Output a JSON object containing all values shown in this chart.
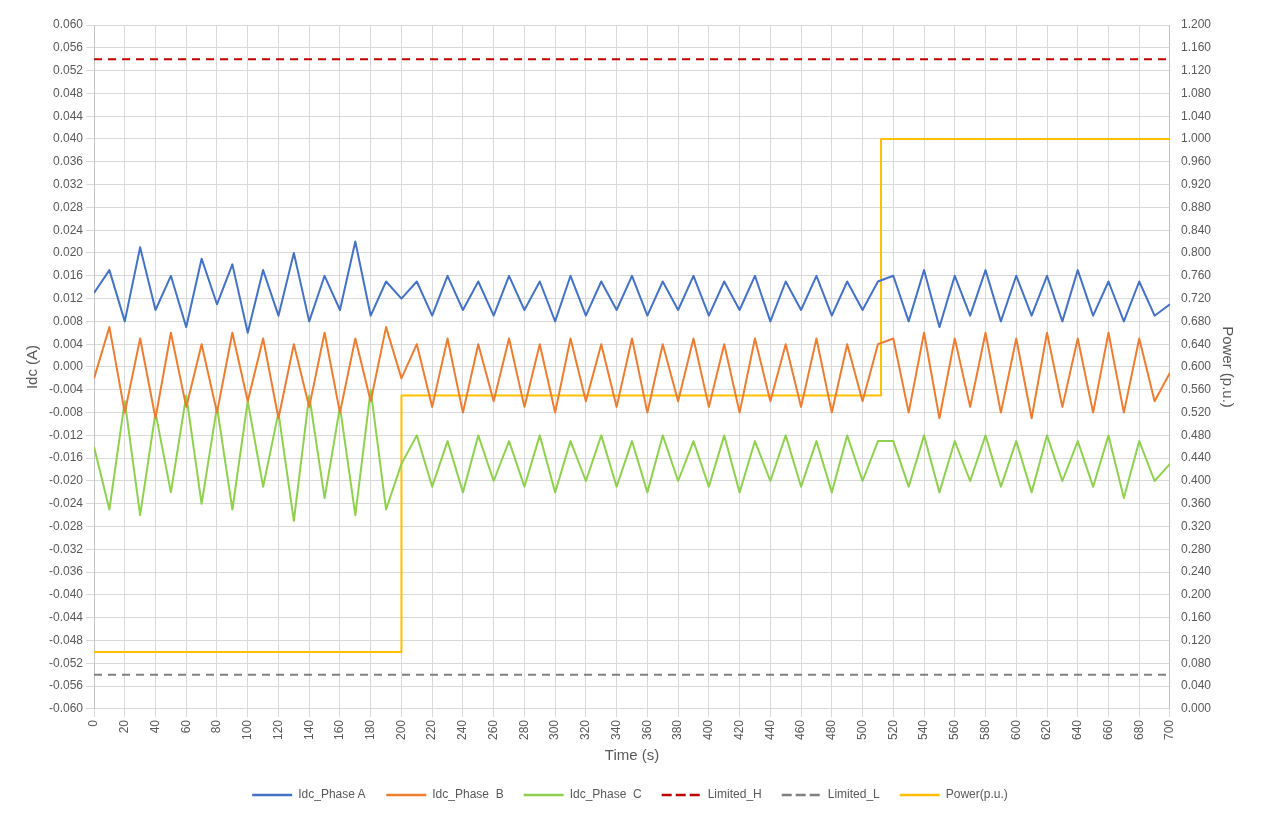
{
  "chart_data": {
    "type": "line",
    "xlabel": "Time (s)",
    "ylabel": "Idc (A)",
    "y2label": "Power (p.u.)",
    "x": [
      0,
      10,
      20,
      30,
      40,
      50,
      60,
      70,
      80,
      90,
      100,
      110,
      120,
      130,
      140,
      150,
      160,
      170,
      180,
      190,
      200,
      210,
      220,
      230,
      240,
      250,
      260,
      270,
      280,
      290,
      300,
      310,
      320,
      330,
      340,
      350,
      360,
      370,
      380,
      390,
      400,
      410,
      420,
      430,
      440,
      450,
      460,
      470,
      480,
      490,
      500,
      510,
      520,
      530,
      540,
      550,
      560,
      570,
      580,
      590,
      600,
      610,
      620,
      630,
      640,
      650,
      660,
      670,
      680,
      690,
      700
    ],
    "series": [
      {
        "name": "Idc_Phase A",
        "color": "#4472c4",
        "values": [
          0.013,
          0.017,
          0.008,
          0.021,
          0.01,
          0.016,
          0.007,
          0.019,
          0.011,
          0.018,
          0.006,
          0.017,
          0.009,
          0.02,
          0.008,
          0.016,
          0.01,
          0.022,
          0.009,
          0.015,
          0.012,
          0.015,
          0.009,
          0.016,
          0.01,
          0.015,
          0.009,
          0.016,
          0.01,
          0.015,
          0.008,
          0.016,
          0.009,
          0.015,
          0.01,
          0.016,
          0.009,
          0.015,
          0.01,
          0.016,
          0.009,
          0.015,
          0.01,
          0.016,
          0.008,
          0.015,
          0.01,
          0.016,
          0.009,
          0.015,
          0.01,
          0.015,
          0.016,
          0.008,
          0.017,
          0.007,
          0.016,
          0.009,
          0.017,
          0.008,
          0.016,
          0.009,
          0.016,
          0.008,
          0.017,
          0.009,
          0.015,
          0.008,
          0.015,
          0.009,
          0.011
        ]
      },
      {
        "name": "Idc_Phase  B",
        "color": "#ed7d31",
        "values": [
          -0.002,
          0.007,
          -0.008,
          0.005,
          -0.009,
          0.006,
          -0.007,
          0.004,
          -0.008,
          0.006,
          -0.006,
          0.005,
          -0.009,
          0.004,
          -0.007,
          0.006,
          -0.008,
          0.005,
          -0.006,
          0.007,
          -0.002,
          0.004,
          -0.007,
          0.005,
          -0.008,
          0.004,
          -0.006,
          0.005,
          -0.007,
          0.004,
          -0.008,
          0.005,
          -0.006,
          0.004,
          -0.007,
          0.005,
          -0.008,
          0.004,
          -0.006,
          0.005,
          -0.007,
          0.004,
          -0.008,
          0.005,
          -0.006,
          0.004,
          -0.007,
          0.005,
          -0.008,
          0.004,
          -0.006,
          0.004,
          0.005,
          -0.008,
          0.006,
          -0.009,
          0.005,
          -0.007,
          0.006,
          -0.008,
          0.005,
          -0.009,
          0.006,
          -0.007,
          0.005,
          -0.008,
          0.006,
          -0.008,
          0.005,
          -0.006,
          -0.001
        ]
      },
      {
        "name": "Idc_Phase  C",
        "color": "#8fd14f",
        "values": [
          -0.014,
          -0.025,
          -0.006,
          -0.026,
          -0.008,
          -0.022,
          -0.005,
          -0.024,
          -0.007,
          -0.025,
          -0.006,
          -0.021,
          -0.008,
          -0.027,
          -0.005,
          -0.023,
          -0.007,
          -0.026,
          -0.004,
          -0.025,
          -0.017,
          -0.012,
          -0.021,
          -0.013,
          -0.022,
          -0.012,
          -0.02,
          -0.013,
          -0.021,
          -0.012,
          -0.022,
          -0.013,
          -0.02,
          -0.012,
          -0.021,
          -0.013,
          -0.022,
          -0.012,
          -0.02,
          -0.013,
          -0.021,
          -0.012,
          -0.022,
          -0.013,
          -0.02,
          -0.012,
          -0.021,
          -0.013,
          -0.022,
          -0.012,
          -0.02,
          -0.013,
          -0.013,
          -0.021,
          -0.012,
          -0.022,
          -0.013,
          -0.02,
          -0.012,
          -0.021,
          -0.013,
          -0.022,
          -0.012,
          -0.02,
          -0.013,
          -0.021,
          -0.012,
          -0.023,
          -0.013,
          -0.02,
          -0.017
        ]
      },
      {
        "name": "Limited_H",
        "color": "#c00000",
        "line_style": "dashed",
        "x": [
          0,
          700
        ],
        "values": [
          0.054,
          0.054
        ]
      },
      {
        "name": "Limited_L",
        "color": "#808080",
        "line_style": "dashed",
        "x": [
          0,
          700
        ],
        "values": [
          -0.054,
          -0.054
        ]
      },
      {
        "name": "Power(p.u.)",
        "color": "#ffc000",
        "axis": "y2",
        "x": [
          0,
          200,
          200,
          512,
          512,
          700
        ],
        "values": [
          0.1,
          0.1,
          0.55,
          0.55,
          1.0,
          1.0
        ]
      }
    ],
    "xlim": [
      0,
      700
    ],
    "xticks": [
      0,
      20,
      40,
      60,
      80,
      100,
      120,
      140,
      160,
      180,
      200,
      220,
      240,
      260,
      280,
      300,
      320,
      340,
      360,
      380,
      400,
      420,
      440,
      460,
      480,
      500,
      520,
      540,
      560,
      580,
      600,
      620,
      640,
      660,
      680,
      700
    ],
    "ylim": [
      -0.06,
      0.06
    ],
    "yticks": [
      {
        "value": -0.06,
        "label": "-0.060"
      },
      {
        "value": -0.056,
        "label": "-0.056"
      },
      {
        "value": -0.052,
        "label": "-0.052"
      },
      {
        "value": -0.048,
        "label": "-0.048"
      },
      {
        "value": -0.044,
        "label": "-0.044"
      },
      {
        "value": -0.04,
        "label": "-0.040"
      },
      {
        "value": -0.036,
        "label": "-0.036"
      },
      {
        "value": -0.032,
        "label": "-0.032"
      },
      {
        "value": -0.028,
        "label": "-0.028"
      },
      {
        "value": -0.024,
        "label": "-0.024"
      },
      {
        "value": -0.02,
        "label": "-0.020"
      },
      {
        "value": -0.016,
        "label": "-0.016"
      },
      {
        "value": -0.012,
        "label": "-0.012"
      },
      {
        "value": -0.008,
        "label": "-0.008"
      },
      {
        "value": -0.004,
        "label": "-0.004"
      },
      {
        "value": 0,
        "label": "0.000"
      },
      {
        "value": 0.004,
        "label": "0.004"
      },
      {
        "value": 0.008,
        "label": "0.008"
      },
      {
        "value": 0.012,
        "label": "0.012"
      },
      {
        "value": 0.016,
        "label": "0.016"
      },
      {
        "value": 0.02,
        "label": "0.020"
      },
      {
        "value": 0.024,
        "label": "0.024"
      },
      {
        "value": 0.028,
        "label": "0.028"
      },
      {
        "value": 0.032,
        "label": "0.032"
      },
      {
        "value": 0.036,
        "label": "0.036"
      },
      {
        "value": 0.04,
        "label": "0.040"
      },
      {
        "value": 0.044,
        "label": "0.044"
      },
      {
        "value": 0.048,
        "label": "0.048"
      },
      {
        "value": 0.052,
        "label": "0.052"
      },
      {
        "value": 0.056,
        "label": "0.056"
      },
      {
        "value": 0.06,
        "label": "0.060"
      }
    ],
    "y2lim": [
      0,
      1.2
    ],
    "y2ticks": [
      {
        "value": 0,
        "label": "0.000"
      },
      {
        "value": 0.04,
        "label": "0.040"
      },
      {
        "value": 0.08,
        "label": "0.080"
      },
      {
        "value": 0.12,
        "label": "0.120"
      },
      {
        "value": 0.16,
        "label": "0.160"
      },
      {
        "value": 0.2,
        "label": "0.200"
      },
      {
        "value": 0.24,
        "label": "0.240"
      },
      {
        "value": 0.28,
        "label": "0.280"
      },
      {
        "value": 0.32,
        "label": "0.320"
      },
      {
        "value": 0.36,
        "label": "0.360"
      },
      {
        "value": 0.4,
        "label": "0.400"
      },
      {
        "value": 0.44,
        "label": "0.440"
      },
      {
        "value": 0.48,
        "label": "0.480"
      },
      {
        "value": 0.52,
        "label": "0.520"
      },
      {
        "value": 0.56,
        "label": "0.560"
      },
      {
        "value": 0.6,
        "label": "0.600"
      },
      {
        "value": 0.64,
        "label": "0.640"
      },
      {
        "value": 0.68,
        "label": "0.680"
      },
      {
        "value": 0.72,
        "label": "0.720"
      },
      {
        "value": 0.76,
        "label": "0.760"
      },
      {
        "value": 0.8,
        "label": "0.800"
      },
      {
        "value": 0.84,
        "label": "0.840"
      },
      {
        "value": 0.88,
        "label": "0.880"
      },
      {
        "value": 0.92,
        "label": "0.920"
      },
      {
        "value": 0.96,
        "label": "0.960"
      },
      {
        "value": 1.0,
        "label": "1.000"
      },
      {
        "value": 1.04,
        "label": "1.040"
      },
      {
        "value": 1.08,
        "label": "1.080"
      },
      {
        "value": 1.12,
        "label": "1.120"
      },
      {
        "value": 1.16,
        "label": "1.160"
      },
      {
        "value": 1.2,
        "label": "1.200"
      }
    ],
    "grid": true,
    "legend": "bottom",
    "marker": "none",
    "line_style": "solid"
  }
}
